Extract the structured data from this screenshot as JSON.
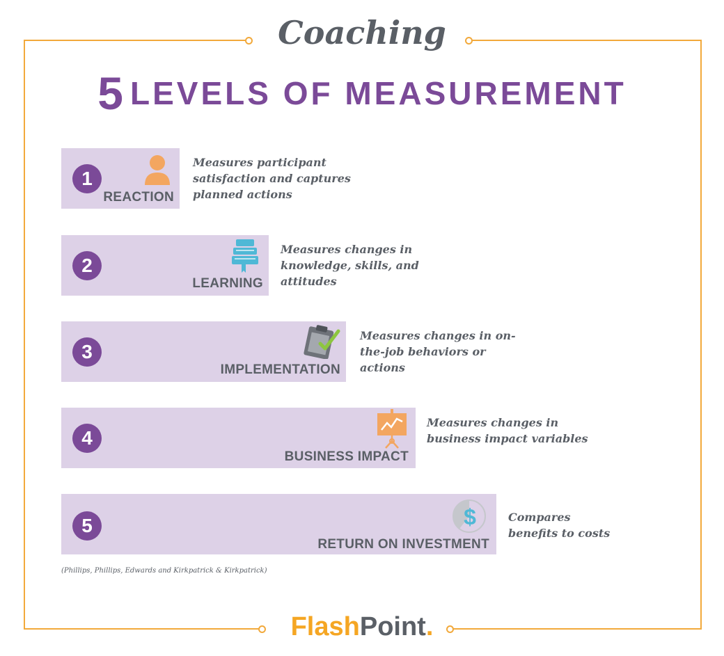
{
  "header": {
    "subtitle": "Coaching",
    "number": "5",
    "title": "LEVELS OF MEASUREMENT"
  },
  "levels": [
    {
      "number": "1",
      "label": "REACTION",
      "icon": "person-icon",
      "description": "Measures participant satisfaction and captures planned actions"
    },
    {
      "number": "2",
      "label": "LEARNING",
      "icon": "books-icon",
      "description": "Measures changes in knowledge, skills, and attitudes"
    },
    {
      "number": "3",
      "label": "IMPLEMENTATION",
      "icon": "clipboard-check-icon",
      "description": "Measures changes in on-the-job behaviors or actions"
    },
    {
      "number": "4",
      "label": "BUSINESS IMPACT",
      "icon": "presentation-chart-icon",
      "description": "Measures changes in business impact variables"
    },
    {
      "number": "5",
      "label": "RETURN ON INVESTMENT",
      "icon": "dollar-icon",
      "description": "Compares benefits to costs"
    }
  ],
  "citation": "(Phillips, Phillips, Edwards and Kirkpatrick & Kirkpatrick)",
  "logo": {
    "part1": "Flash",
    "part2": "Point",
    "dot": "."
  },
  "colors": {
    "frame": "#f2a93b",
    "purple": "#7b4a98",
    "bar": "#ddd1e7",
    "text": "#5a5f66",
    "orange": "#f5a623",
    "blue": "#4fb8d6"
  }
}
